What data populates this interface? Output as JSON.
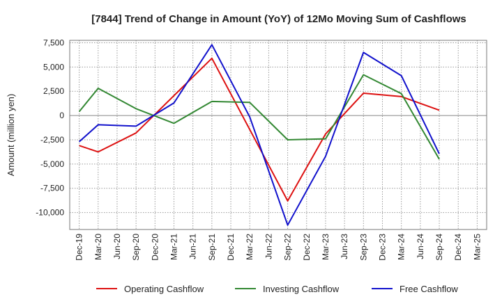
{
  "chart_data": {
    "type": "line",
    "title": "[7844]  Trend of Change in Amount (YoY) of 12Mo Moving Sum of Cashflows",
    "xlabel": "",
    "ylabel": "Amount (million yen)",
    "categories": [
      "Dec-19",
      "Mar-20",
      "Jun-20",
      "Sep-20",
      "Dec-20",
      "Mar-21",
      "Jun-21",
      "Sep-21",
      "Dec-21",
      "Mar-22",
      "Jun-22",
      "Sep-22",
      "Dec-22",
      "Mar-23",
      "Jun-23",
      "Sep-23",
      "Dec-23",
      "Mar-24",
      "Jun-24",
      "Sep-24",
      "Dec-24",
      "Mar-25"
    ],
    "ylim": [
      -11750,
      7750
    ],
    "yticks": [
      7500,
      5000,
      2500,
      0,
      -2500,
      -5000,
      -7500,
      -10000
    ],
    "ytick_labels": [
      "7,500",
      "5,000",
      "2,500",
      "0",
      "-2,500",
      "-5,000",
      "-7,500",
      "-10,000"
    ],
    "grid": true,
    "legend_position": "bottom",
    "series": [
      {
        "name": "Operating Cashflow",
        "color": "#dd1111",
        "points": [
          [
            0,
            -3100
          ],
          [
            1,
            -3750
          ],
          [
            3,
            -1800
          ],
          [
            7,
            5900
          ],
          [
            11,
            -8800
          ],
          [
            13,
            -1900
          ],
          [
            15,
            2300
          ],
          [
            17,
            1950
          ],
          [
            19,
            550
          ]
        ]
      },
      {
        "name": "Investing Cashflow",
        "color": "#338833",
        "points": [
          [
            0,
            400
          ],
          [
            1,
            2800
          ],
          [
            3,
            700
          ],
          [
            5,
            -800
          ],
          [
            7,
            1450
          ],
          [
            9,
            1350
          ],
          [
            11,
            -2500
          ],
          [
            13,
            -2400
          ],
          [
            15,
            4200
          ],
          [
            17,
            2250
          ],
          [
            19,
            -4500
          ]
        ]
      },
      {
        "name": "Free Cashflow",
        "color": "#1111cc",
        "points": [
          [
            0,
            -2700
          ],
          [
            1,
            -950
          ],
          [
            3,
            -1100
          ],
          [
            5,
            1300
          ],
          [
            7,
            7300
          ],
          [
            9,
            -150
          ],
          [
            11,
            -11300
          ],
          [
            13,
            -4200
          ],
          [
            15,
            6500
          ],
          [
            17,
            4100
          ],
          [
            19,
            -3950
          ]
        ]
      }
    ]
  }
}
